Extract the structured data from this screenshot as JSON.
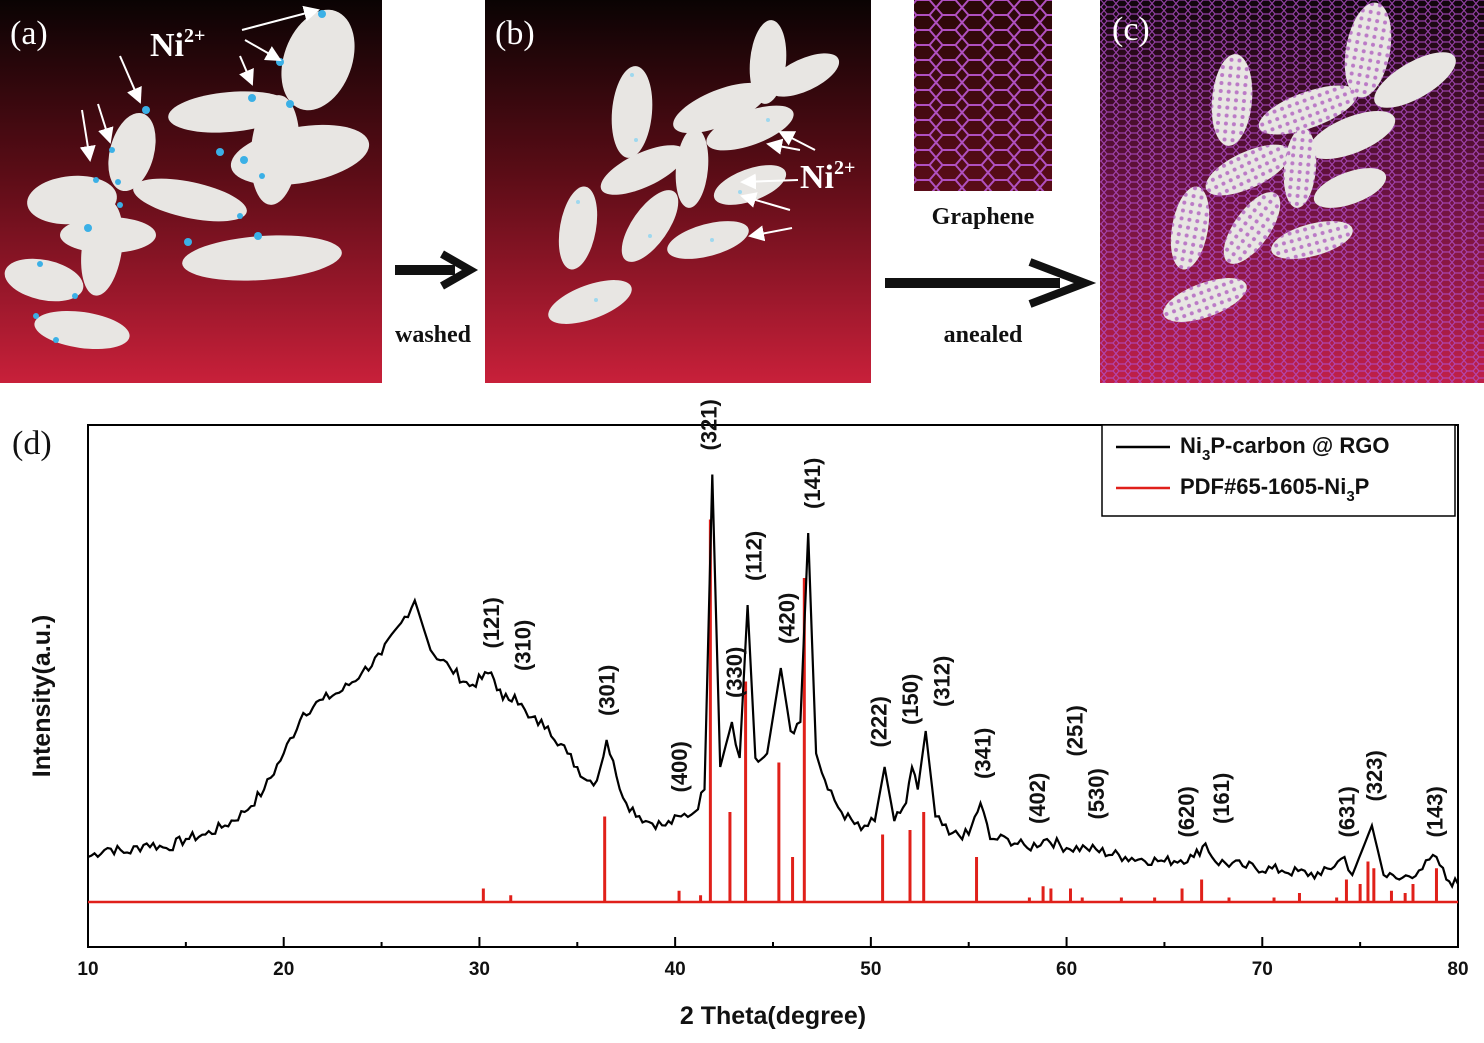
{
  "panels": {
    "a": {
      "label": "(a)",
      "ion_label": "Ni",
      "ion_sup": "2+"
    },
    "b": {
      "label": "(b)",
      "ion_label": "Ni",
      "ion_sup": "2+"
    },
    "c": {
      "label": "(c)"
    },
    "d": {
      "label": "(d)"
    }
  },
  "steps": {
    "washed": "washed",
    "annealed": "anealed",
    "graphene": "Graphene"
  },
  "colors": {
    "particle": "#e8e6e3",
    "ion": "#3bb0e6",
    "graphene": "#a040b0",
    "bg_dark": "#200808",
    "bg_red": "#c8203a",
    "xrd_line": "#000000",
    "pdf_line": "#e0201a"
  },
  "chart_data": {
    "type": "line",
    "xlabel": "2 Theta(degree)",
    "ylabel": "Intensity(a.u.)",
    "xlim": [
      10,
      80
    ],
    "xticks": [
      10,
      20,
      30,
      40,
      50,
      60,
      70,
      80
    ],
    "grid": false,
    "legend_position": "top-right",
    "series": [
      {
        "name_parts": [
          "Ni",
          "3",
          "P-carbon @ RGO"
        ],
        "color": "#000000",
        "points": [
          [
            10,
            0.1
          ],
          [
            11,
            0.12
          ],
          [
            12,
            0.11
          ],
          [
            13,
            0.13
          ],
          [
            14,
            0.12
          ],
          [
            15,
            0.14
          ],
          [
            16,
            0.15
          ],
          [
            17,
            0.17
          ],
          [
            18,
            0.2
          ],
          [
            19,
            0.25
          ],
          [
            20,
            0.33
          ],
          [
            21,
            0.42
          ],
          [
            22,
            0.45
          ],
          [
            23,
            0.47
          ],
          [
            24,
            0.51
          ],
          [
            25,
            0.55
          ],
          [
            26,
            0.62
          ],
          [
            26.7,
            0.67
          ],
          [
            27.5,
            0.56
          ],
          [
            28.5,
            0.52
          ],
          [
            29.5,
            0.48
          ],
          [
            30.6,
            0.51
          ],
          [
            31.2,
            0.45
          ],
          [
            31.8,
            0.46
          ],
          [
            32.5,
            0.41
          ],
          [
            33.5,
            0.39
          ],
          [
            34.5,
            0.33
          ],
          [
            35.5,
            0.27
          ],
          [
            36.0,
            0.27
          ],
          [
            36.5,
            0.36
          ],
          [
            37.0,
            0.28
          ],
          [
            37.5,
            0.22
          ],
          [
            38.5,
            0.18
          ],
          [
            39.5,
            0.17
          ],
          [
            40.3,
            0.19
          ],
          [
            41.0,
            0.2
          ],
          [
            41.5,
            0.25
          ],
          [
            41.9,
            0.95
          ],
          [
            42.3,
            0.3
          ],
          [
            42.9,
            0.4
          ],
          [
            43.3,
            0.32
          ],
          [
            43.7,
            0.66
          ],
          [
            44.1,
            0.32
          ],
          [
            44.7,
            0.33
          ],
          [
            45.4,
            0.52
          ],
          [
            45.9,
            0.38
          ],
          [
            46.4,
            0.4
          ],
          [
            46.8,
            0.82
          ],
          [
            47.2,
            0.33
          ],
          [
            47.8,
            0.25
          ],
          [
            48.5,
            0.2
          ],
          [
            49.5,
            0.16
          ],
          [
            50.2,
            0.18
          ],
          [
            50.7,
            0.3
          ],
          [
            51.2,
            0.18
          ],
          [
            51.8,
            0.22
          ],
          [
            52.1,
            0.3
          ],
          [
            52.4,
            0.25
          ],
          [
            52.8,
            0.38
          ],
          [
            53.3,
            0.19
          ],
          [
            54.0,
            0.15
          ],
          [
            55.0,
            0.15
          ],
          [
            55.6,
            0.22
          ],
          [
            56.1,
            0.14
          ],
          [
            57.0,
            0.14
          ],
          [
            58.0,
            0.12
          ],
          [
            59.0,
            0.14
          ],
          [
            60.0,
            0.12
          ],
          [
            61.0,
            0.12
          ],
          [
            63.0,
            0.1
          ],
          [
            65.0,
            0.09
          ],
          [
            66.5,
            0.1
          ],
          [
            67.1,
            0.13
          ],
          [
            67.6,
            0.09
          ],
          [
            69.0,
            0.08
          ],
          [
            71.0,
            0.07
          ],
          [
            73.0,
            0.06
          ],
          [
            74.2,
            0.1
          ],
          [
            74.6,
            0.06
          ],
          [
            75.6,
            0.17
          ],
          [
            76.2,
            0.06
          ],
          [
            77.0,
            0.05
          ],
          [
            78.0,
            0.07
          ],
          [
            78.9,
            0.1
          ],
          [
            79.4,
            0.05
          ],
          [
            80,
            0.04
          ]
        ]
      },
      {
        "name_parts": [
          "PDF#65-1605-Ni",
          "3",
          "P"
        ],
        "color": "#e0201a",
        "baseline": 0,
        "sticks": [
          [
            30.2,
            0.03
          ],
          [
            31.6,
            0.015
          ],
          [
            36.4,
            0.19
          ],
          [
            40.2,
            0.025
          ],
          [
            41.3,
            0.015
          ],
          [
            41.8,
            0.85
          ],
          [
            42.8,
            0.2
          ],
          [
            43.6,
            0.49
          ],
          [
            45.3,
            0.31
          ],
          [
            46.0,
            0.1
          ],
          [
            46.6,
            0.72
          ],
          [
            50.6,
            0.15
          ],
          [
            52.0,
            0.16
          ],
          [
            52.7,
            0.2
          ],
          [
            55.4,
            0.1
          ],
          [
            58.1,
            0.01
          ],
          [
            58.8,
            0.035
          ],
          [
            59.2,
            0.03
          ],
          [
            60.2,
            0.03
          ],
          [
            60.8,
            0.01
          ],
          [
            62.8,
            0.01
          ],
          [
            64.5,
            0.01
          ],
          [
            65.9,
            0.03
          ],
          [
            66.9,
            0.05
          ],
          [
            68.3,
            0.01
          ],
          [
            70.6,
            0.01
          ],
          [
            71.9,
            0.02
          ],
          [
            73.8,
            0.01
          ],
          [
            74.3,
            0.05
          ],
          [
            75.0,
            0.04
          ],
          [
            75.4,
            0.09
          ],
          [
            75.7,
            0.075
          ],
          [
            76.6,
            0.025
          ],
          [
            77.3,
            0.02
          ],
          [
            77.7,
            0.04
          ],
          [
            78.9,
            0.075
          ]
        ]
      }
    ],
    "annotations": [
      {
        "text": "(121)",
        "x": 30.6,
        "y": 0.55
      },
      {
        "text": "(310)",
        "x": 32.2,
        "y": 0.5
      },
      {
        "text": "(301)",
        "x": 36.5,
        "y": 0.4
      },
      {
        "text": "(400)",
        "x": 40.2,
        "y": 0.23
      },
      {
        "text": "(321)",
        "x": 41.7,
        "y": 0.99
      },
      {
        "text": "(330)",
        "x": 43.0,
        "y": 0.44
      },
      {
        "text": "(112)",
        "x": 44.0,
        "y": 0.7
      },
      {
        "text": "(420)",
        "x": 45.7,
        "y": 0.56
      },
      {
        "text": "(141)",
        "x": 47.0,
        "y": 0.86
      },
      {
        "text": "(222)",
        "x": 50.4,
        "y": 0.33
      },
      {
        "text": "(150)",
        "x": 52.0,
        "y": 0.38
      },
      {
        "text": "(312)",
        "x": 53.6,
        "y": 0.42
      },
      {
        "text": "(341)",
        "x": 55.7,
        "y": 0.26
      },
      {
        "text": "(402)",
        "x": 58.5,
        "y": 0.16
      },
      {
        "text": "(251)",
        "x": 60.4,
        "y": 0.31
      },
      {
        "text": "(530)",
        "x": 61.5,
        "y": 0.17
      },
      {
        "text": "(620)",
        "x": 66.1,
        "y": 0.13
      },
      {
        "text": "(161)",
        "x": 67.9,
        "y": 0.16
      },
      {
        "text": "(631)",
        "x": 74.3,
        "y": 0.13
      },
      {
        "text": "(323)",
        "x": 75.7,
        "y": 0.21
      },
      {
        "text": "(143)",
        "x": 78.8,
        "y": 0.13
      }
    ]
  }
}
